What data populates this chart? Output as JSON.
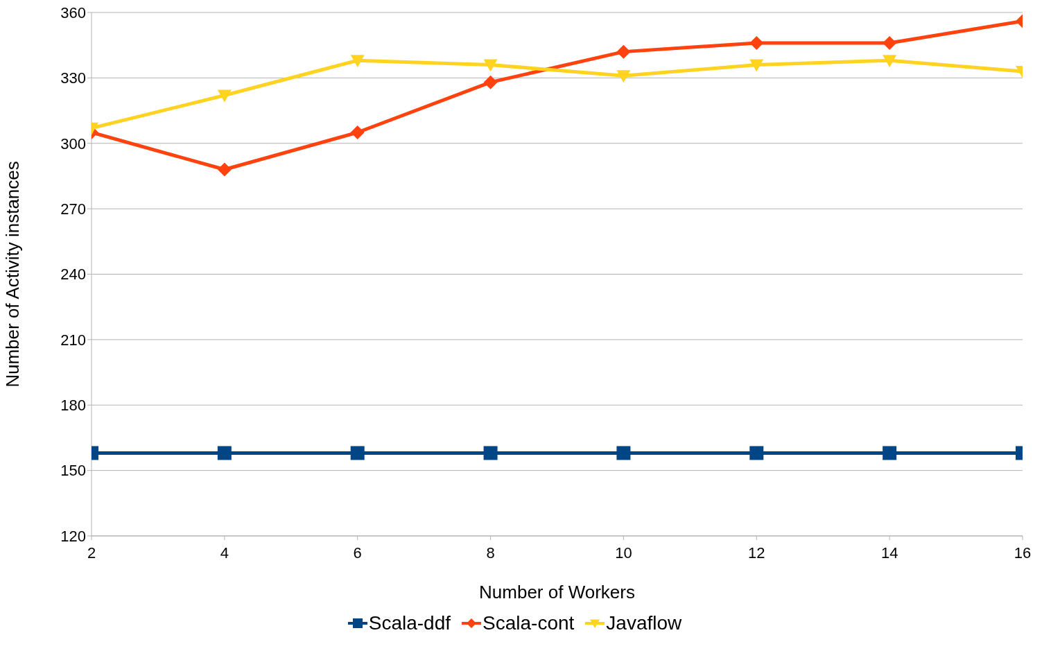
{
  "chart_data": {
    "type": "line",
    "xlabel": "Number of Workers",
    "ylabel": "Number of Activity instances",
    "x": [
      2,
      4,
      6,
      8,
      10,
      12,
      14,
      16
    ],
    "xlim": [
      2,
      16
    ],
    "xticks": [
      2,
      4,
      6,
      8,
      10,
      12,
      14,
      16
    ],
    "ylim": [
      120,
      360
    ],
    "yticks": [
      120,
      150,
      180,
      210,
      240,
      270,
      300,
      330,
      360
    ],
    "grid": "y",
    "legend": "bottom",
    "line_style": "solid",
    "series": [
      {
        "name": "Scala-ddf",
        "color": "#004586",
        "marker": "square",
        "values": [
          158,
          158,
          158,
          158,
          158,
          158,
          158,
          158
        ]
      },
      {
        "name": "Scala-cont",
        "color": "#ff420e",
        "marker": "diamond",
        "values": [
          305,
          288,
          305,
          328,
          342,
          346,
          346,
          356
        ]
      },
      {
        "name": "Javaflow",
        "color": "#ffd320",
        "marker": "triangle",
        "values": [
          307,
          322,
          338,
          336,
          331,
          336,
          338,
          333
        ]
      }
    ]
  }
}
